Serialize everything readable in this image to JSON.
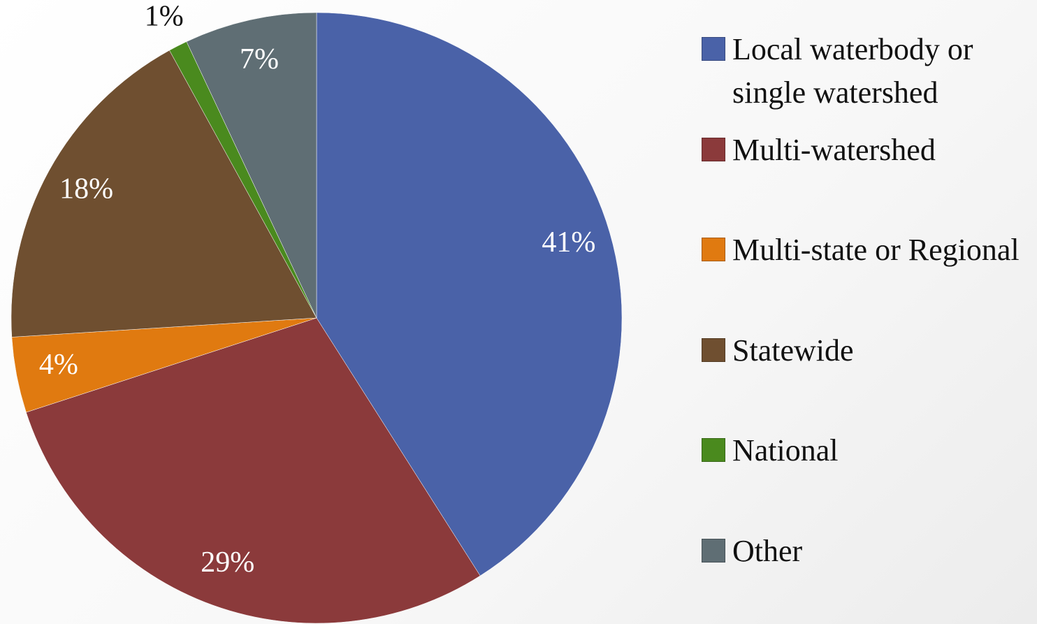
{
  "chart_data": {
    "type": "pie",
    "categories": [
      "Local waterbody or single watershed",
      "Multi-watershed",
      "Multi-state or Regional",
      "Statewide",
      "National",
      "Other"
    ],
    "values": [
      41,
      29,
      4,
      18,
      1,
      7
    ],
    "value_labels": [
      "41%",
      "29%",
      "4%",
      "18%",
      "1%",
      "7%"
    ],
    "colors": [
      "#4a62a8",
      "#8b3a3b",
      "#e07a10",
      "#6f4f30",
      "#4a8a1e",
      "#5f6e74"
    ],
    "legend": "right"
  }
}
